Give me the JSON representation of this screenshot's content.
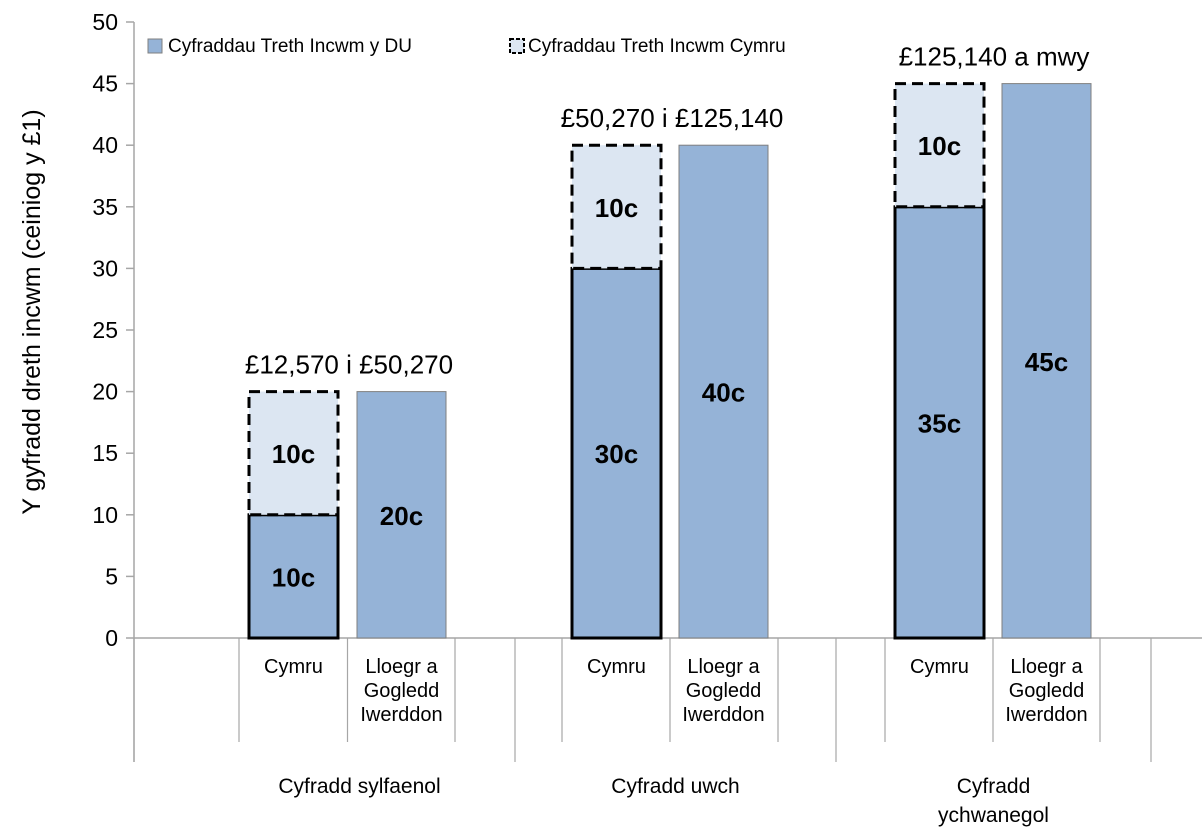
{
  "chart_data": {
    "type": "bar",
    "stacked": true,
    "ylabel": "Y gyfradd dreth incwm (ceiniog y £1)",
    "ylim": [
      0,
      50
    ],
    "yticks": [
      0,
      5,
      10,
      15,
      20,
      25,
      30,
      35,
      40,
      45,
      50
    ],
    "legend": {
      "placement": "top-left",
      "entries": [
        "Cyfraddau Treth Incwm y DU",
        "Cyfraddau Treth Incwm Cymru"
      ]
    },
    "colors": {
      "uk": "#95b3d7",
      "wales": "#dce6f2",
      "outline": "#000000",
      "axis": "#a6a6a6"
    },
    "groups": [
      {
        "name": "Cyfradd sylfaenol",
        "range_label": "£12,570 i £50,270",
        "bars": [
          {
            "category": [
              "Cymru"
            ],
            "segments": [
              {
                "series": "Cyfraddau Treth Incwm y DU",
                "value": 10,
                "label": "10c"
              },
              {
                "series": "Cyfraddau Treth Incwm Cymru",
                "value": 10,
                "label": "10c"
              }
            ]
          },
          {
            "category": [
              "Lloegr a",
              "Gogledd",
              "Iwerddon"
            ],
            "segments": [
              {
                "series": "Cyfraddau Treth Incwm y DU",
                "value": 20,
                "label": "20c"
              }
            ]
          }
        ]
      },
      {
        "name": "Cyfradd uwch",
        "range_label": "£50,270 i £125,140",
        "bars": [
          {
            "category": [
              "Cymru"
            ],
            "segments": [
              {
                "series": "Cyfraddau Treth Incwm y DU",
                "value": 30,
                "label": "30c"
              },
              {
                "series": "Cyfraddau Treth Incwm Cymru",
                "value": 10,
                "label": "10c"
              }
            ]
          },
          {
            "category": [
              "Lloegr a",
              "Gogledd",
              "Iwerddon"
            ],
            "segments": [
              {
                "series": "Cyfraddau Treth Incwm y DU",
                "value": 40,
                "label": "40c"
              }
            ]
          }
        ]
      },
      {
        "name": "Cyfradd ychwanegol",
        "name_lines": [
          "Cyfradd",
          "ychwanegol"
        ],
        "range_label": "£125,140 a mwy",
        "bars": [
          {
            "category": [
              "Cymru"
            ],
            "segments": [
              {
                "series": "Cyfraddau Treth Incwm y DU",
                "value": 35,
                "label": "35c"
              },
              {
                "series": "Cyfraddau Treth Incwm Cymru",
                "value": 10,
                "label": "10c"
              }
            ]
          },
          {
            "category": [
              "Lloegr a",
              "Gogledd",
              "Iwerddon"
            ],
            "segments": [
              {
                "series": "Cyfraddau Treth Incwm y DU",
                "value": 45,
                "label": "45c"
              }
            ]
          }
        ]
      }
    ]
  }
}
